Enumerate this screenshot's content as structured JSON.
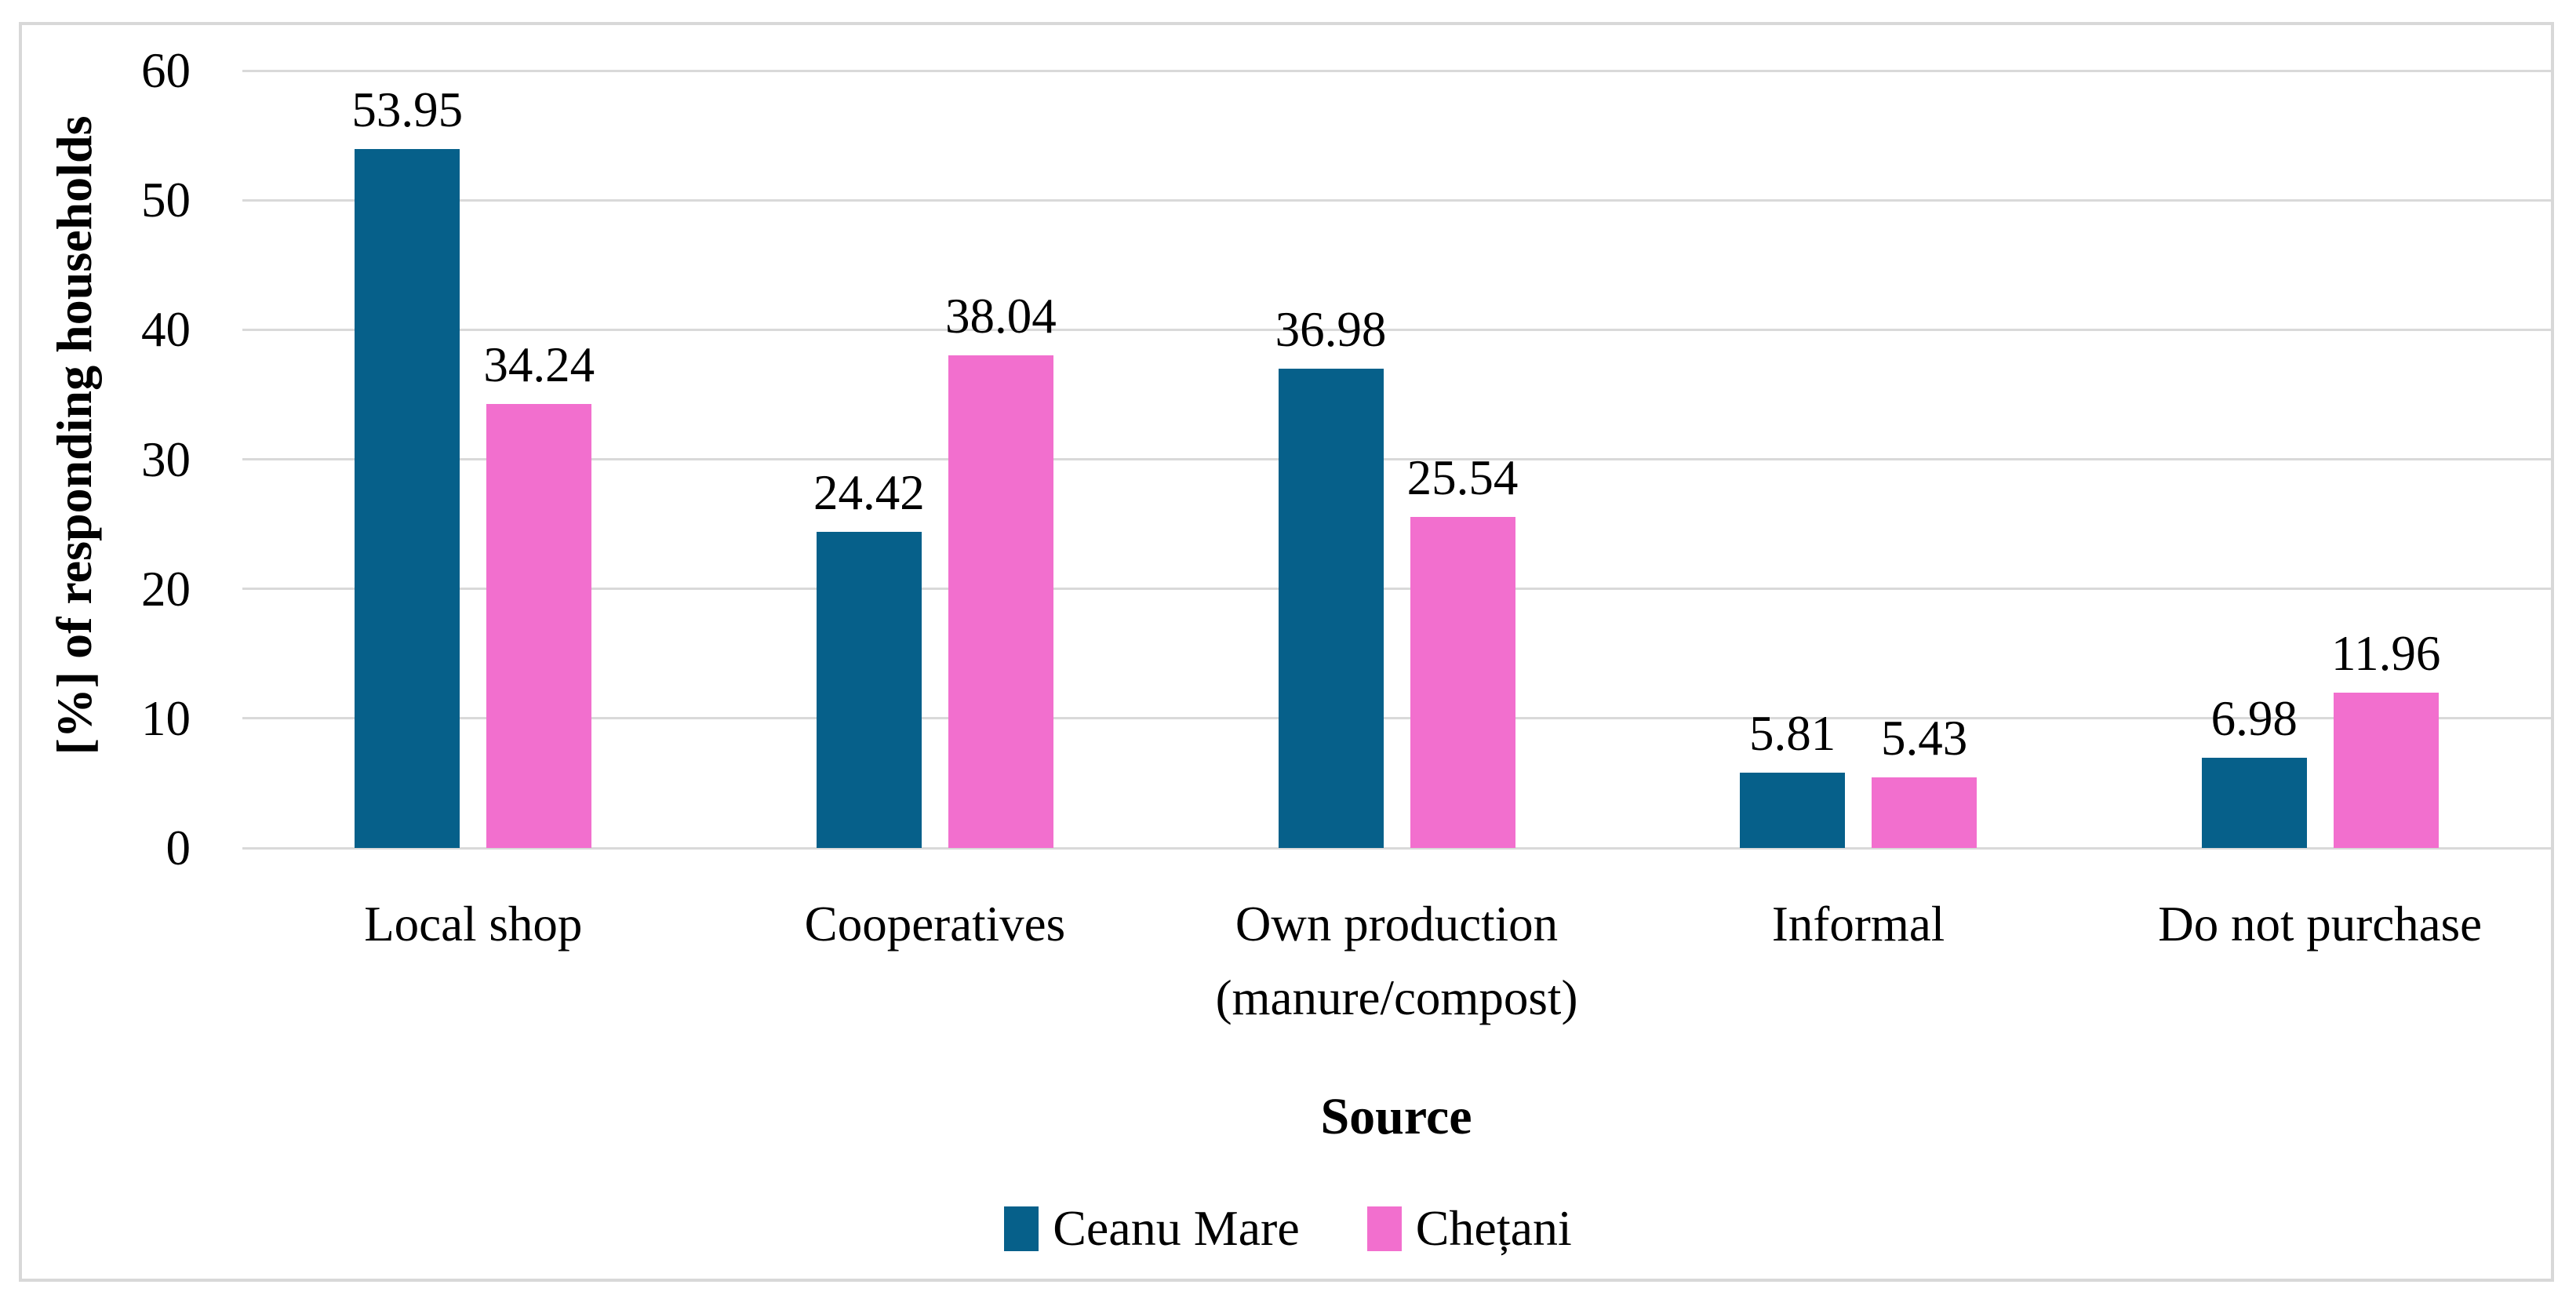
{
  "figure": {
    "background_color": "#FFFFFF",
    "frame_border_color": "#D8D8D8",
    "text_color": "#000000"
  },
  "chart_data": {
    "type": "bar",
    "title": "",
    "categories": [
      "Local shop",
      "Cooperatives",
      "Own production\n(manure/compost)",
      "Informal",
      "Do not purchase"
    ],
    "series": [
      {
        "name": "Ceanu Mare",
        "color": "#06608A",
        "values": [
          53.95,
          24.42,
          36.98,
          5.81,
          6.98
        ]
      },
      {
        "name": "Chețani",
        "color": "#F26FCE",
        "values": [
          34.24,
          38.04,
          25.54,
          5.43,
          11.96
        ]
      }
    ],
    "value_labels_shown": true,
    "value_label_decimals": 2,
    "xlabel": "Source",
    "ylabel": "[%] of responding households",
    "ylim": [
      0,
      60
    ],
    "yticks": [
      0,
      10,
      20,
      30,
      40,
      50,
      60
    ],
    "grid": true,
    "gridline_color": "#D9D9D9",
    "legend_position": "bottom"
  }
}
